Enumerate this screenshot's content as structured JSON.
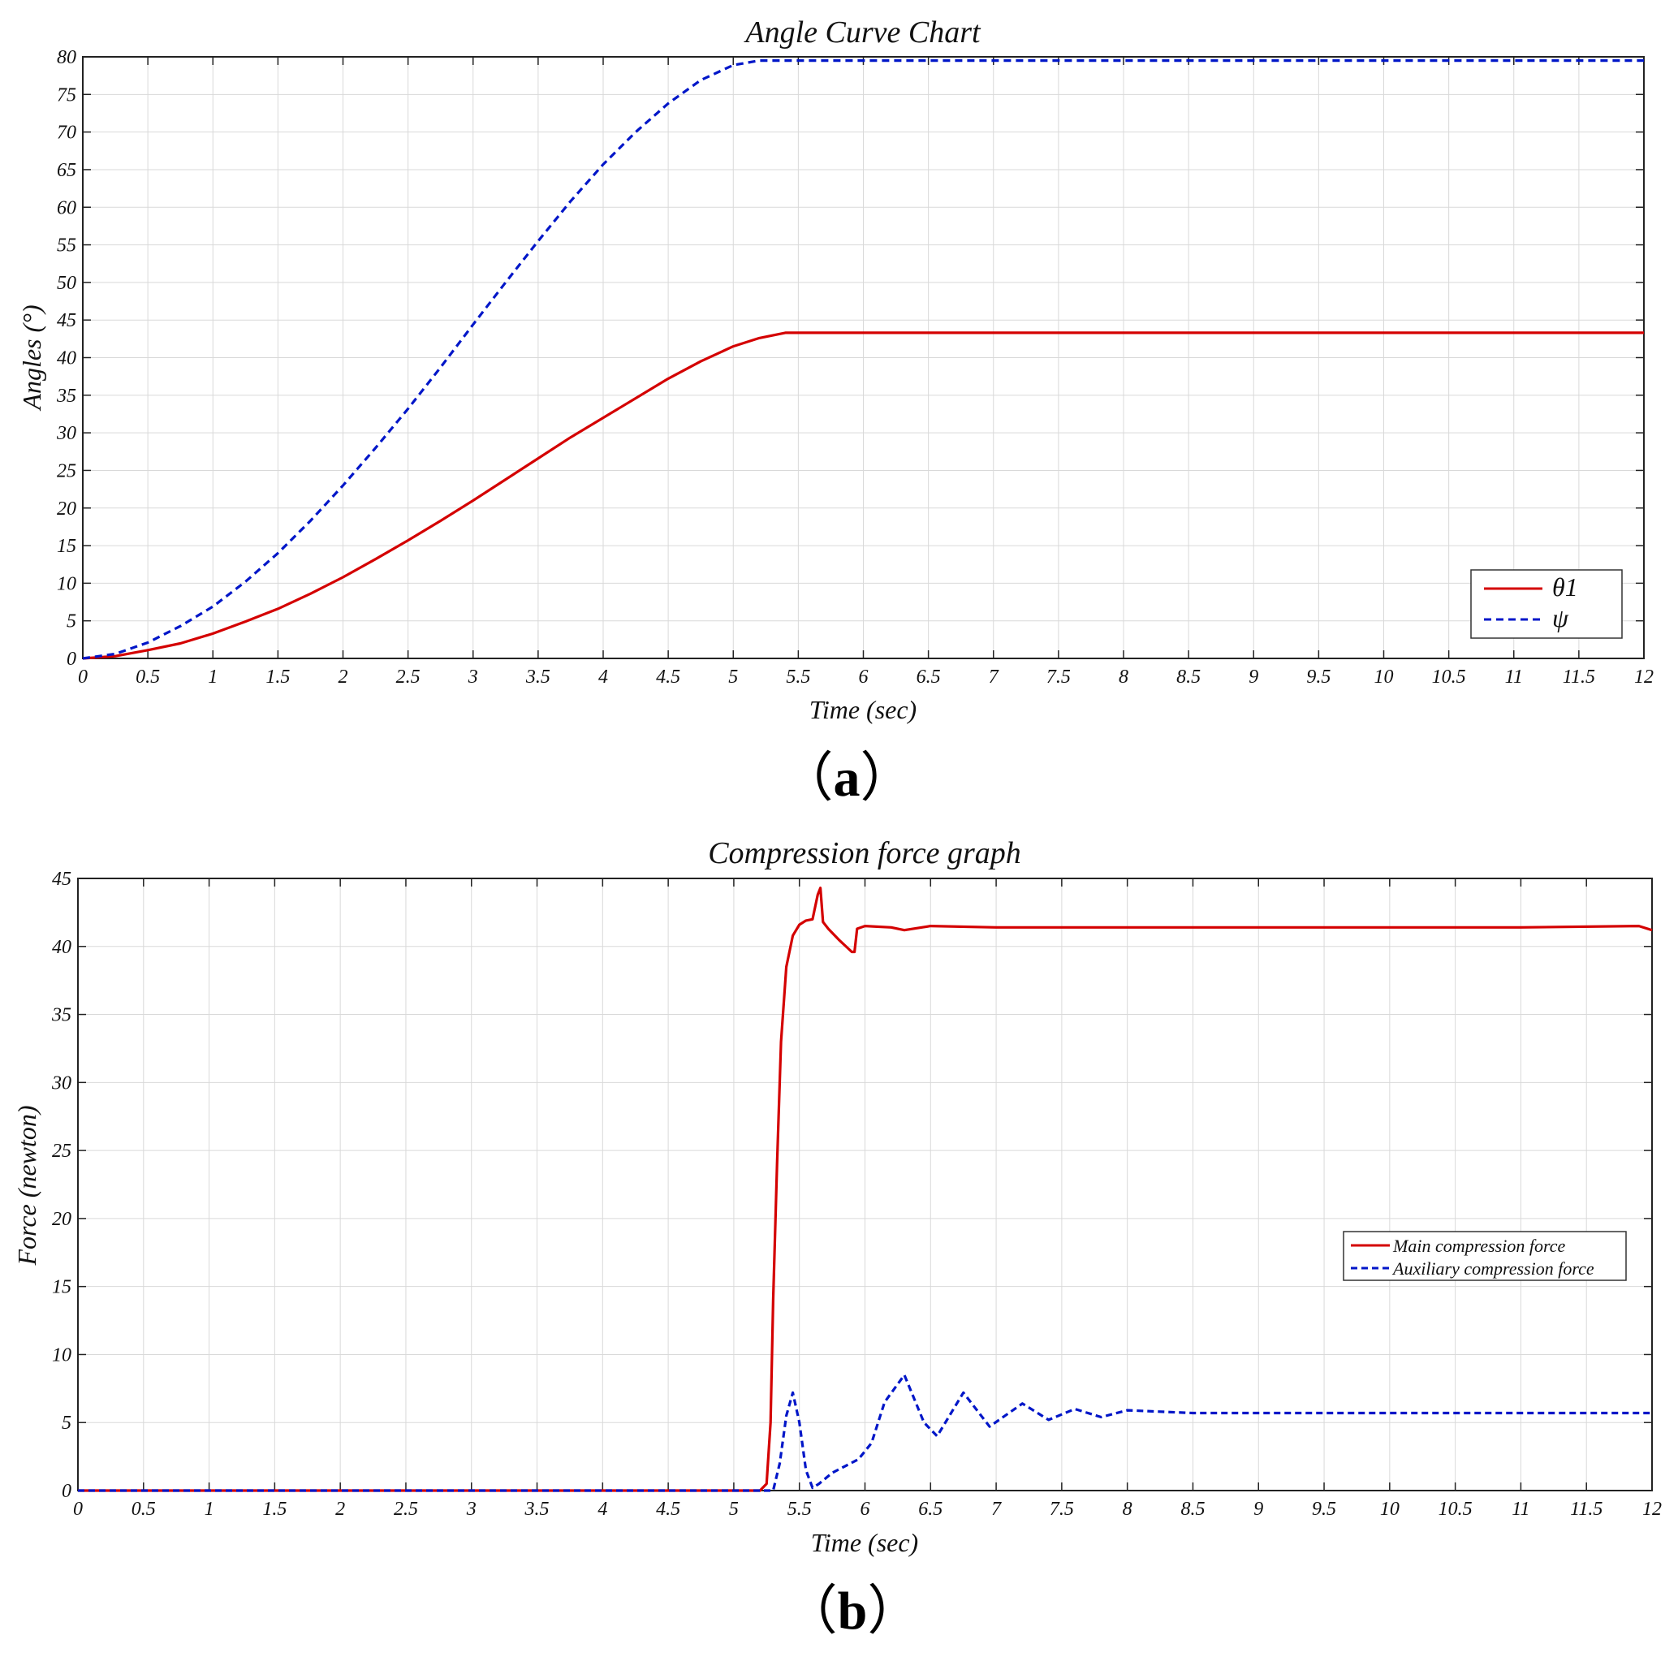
{
  "chart_data": [
    {
      "type": "line",
      "title": "Angle Curve Chart",
      "xlabel": "Time  (sec)",
      "ylabel": "Angles (°)",
      "xlim": [
        0,
        12
      ],
      "ylim": [
        0,
        80
      ],
      "xticks": [
        "0",
        "0.5",
        "1",
        "1.5",
        "2",
        "2.5",
        "3",
        "3.5",
        "4",
        "4.5",
        "5",
        "5.5",
        "6",
        "6.5",
        "7",
        "7.5",
        "8",
        "8.5",
        "9",
        "9.5",
        "10",
        "10.5",
        "11",
        "11.5",
        "12"
      ],
      "yticks": [
        "0",
        "5",
        "10",
        "15",
        "20",
        "25",
        "30",
        "35",
        "40",
        "45",
        "50",
        "55",
        "60",
        "65",
        "70",
        "75",
        "80"
      ],
      "grid": true,
      "legend_position": "bottom-right",
      "series": [
        {
          "name": "θ1",
          "color": "#d40000",
          "dash": "solid",
          "x": [
            0,
            0.25,
            0.5,
            0.75,
            1,
            1.25,
            1.5,
            1.75,
            2,
            2.25,
            2.5,
            2.75,
            3,
            3.25,
            3.5,
            3.75,
            4,
            4.25,
            4.5,
            4.75,
            5,
            5.2,
            5.4,
            6,
            12
          ],
          "y": [
            0,
            0.3,
            1.1,
            2.0,
            3.3,
            4.9,
            6.6,
            8.6,
            10.8,
            13.2,
            15.7,
            18.3,
            21.0,
            23.8,
            26.6,
            29.4,
            32.0,
            34.6,
            37.2,
            39.5,
            41.5,
            42.6,
            43.3,
            43.3,
            43.3
          ]
        },
        {
          "name": "ψ",
          "color": "#0016c8",
          "dash": "dashed",
          "x": [
            0,
            0.25,
            0.5,
            0.75,
            1,
            1.25,
            1.5,
            1.75,
            2,
            2.25,
            2.5,
            2.75,
            3,
            3.25,
            3.5,
            3.75,
            4,
            4.25,
            4.5,
            4.75,
            5,
            5.2,
            5.4,
            6,
            12
          ],
          "y": [
            0,
            0.6,
            2.1,
            4.3,
            6.9,
            10.2,
            14.0,
            18.3,
            23.0,
            28.0,
            33.2,
            38.7,
            44.4,
            50.0,
            55.5,
            60.8,
            65.7,
            70.0,
            73.8,
            76.9,
            78.9,
            79.5,
            79.5,
            79.5,
            79.5
          ]
        }
      ],
      "panel_label": [
        "（",
        "a",
        "）"
      ]
    },
    {
      "type": "line",
      "title": "Compression force graph",
      "xlabel": "Time  (sec)",
      "ylabel": "Force (newton)",
      "xlim": [
        0,
        12
      ],
      "ylim": [
        0,
        45
      ],
      "xticks": [
        "0",
        "0.5",
        "1",
        "1.5",
        "2",
        "2.5",
        "3",
        "3.5",
        "4",
        "4.5",
        "5",
        "5.5",
        "6",
        "6.5",
        "7",
        "7.5",
        "8",
        "8.5",
        "9",
        "9.5",
        "10",
        "10.5",
        "11",
        "11.5",
        "12"
      ],
      "yticks": [
        "0",
        "5",
        "10",
        "15",
        "20",
        "25",
        "30",
        "35",
        "40",
        "45"
      ],
      "grid": true,
      "legend_position": "middle-right",
      "series": [
        {
          "name": "Main compression force",
          "color": "#d40000",
          "dash": "solid",
          "x": [
            0,
            5.2,
            5.25,
            5.28,
            5.3,
            5.33,
            5.36,
            5.4,
            5.45,
            5.5,
            5.55,
            5.6,
            5.64,
            5.66,
            5.68,
            5.72,
            5.8,
            5.9,
            5.92,
            5.94,
            6.0,
            6.2,
            6.3,
            6.5,
            7,
            8,
            9,
            10,
            11,
            11.9,
            12
          ],
          "y": [
            0,
            0,
            0.5,
            5,
            14,
            24,
            33,
            38.5,
            40.8,
            41.6,
            41.9,
            42.0,
            43.8,
            44.3,
            41.8,
            41.3,
            40.5,
            39.6,
            39.6,
            41.3,
            41.5,
            41.4,
            41.2,
            41.5,
            41.4,
            41.4,
            41.4,
            41.4,
            41.4,
            41.5,
            41.2
          ]
        },
        {
          "name": "Auxiliary compression force",
          "color": "#0016c8",
          "dash": "dashed",
          "x": [
            0,
            5.3,
            5.35,
            5.4,
            5.45,
            5.5,
            5.55,
            5.6,
            5.65,
            5.75,
            5.85,
            5.95,
            6.05,
            6.15,
            6.3,
            6.45,
            6.55,
            6.75,
            6.95,
            7.2,
            7.4,
            7.6,
            7.8,
            8.0,
            8.5,
            9,
            10,
            11,
            12
          ],
          "y": [
            0,
            0,
            2.0,
            5.5,
            7.2,
            5.0,
            1.5,
            0.2,
            0.5,
            1.3,
            1.8,
            2.3,
            3.5,
            6.5,
            8.5,
            5.0,
            4.0,
            7.2,
            4.7,
            6.4,
            5.2,
            6.0,
            5.4,
            5.9,
            5.7,
            5.7,
            5.7,
            5.7,
            5.7
          ]
        }
      ],
      "panel_label": [
        "（",
        "b",
        "）"
      ]
    }
  ]
}
